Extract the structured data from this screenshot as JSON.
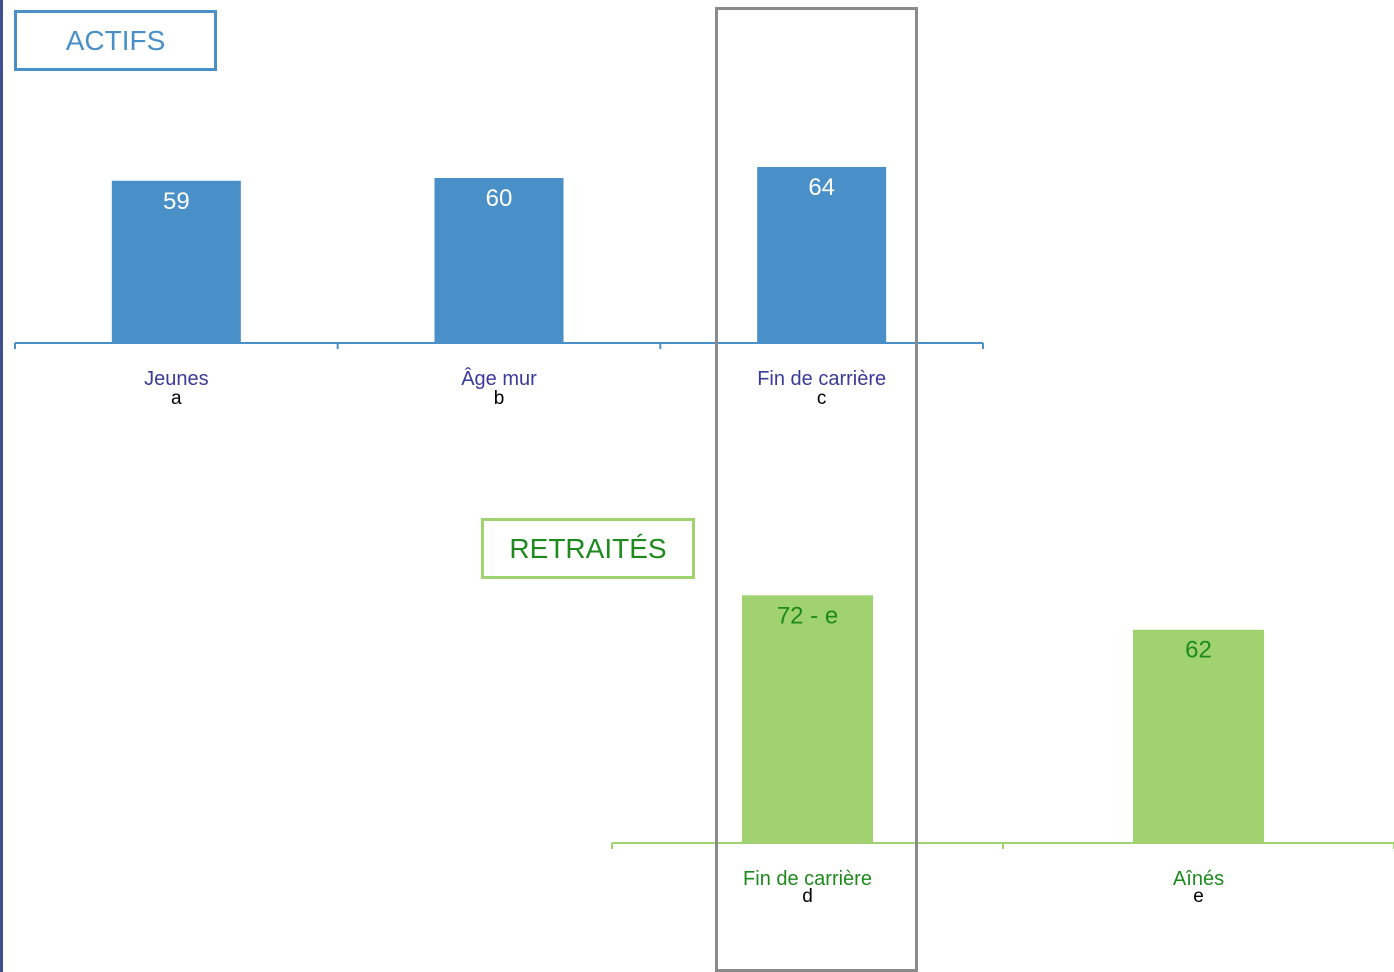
{
  "colors": {
    "actifs": "#4a90c8",
    "retraites": "#a0d26f",
    "retraites_text": "#1e8a1e",
    "actifs_category_text": "#3a3a9a",
    "highlight_frame": "#8a8a8a"
  },
  "legend": {
    "actifs": "ACTIFS",
    "retraites": "RETRAITÉS"
  },
  "chart_data": [
    {
      "type": "bar",
      "series_name": "ACTIFS",
      "categories": [
        "Jeunes",
        "Âge mur",
        "Fin de carrière"
      ],
      "category_letters": [
        "a",
        "b",
        "c"
      ],
      "values": [
        59,
        60,
        64
      ],
      "value_labels": [
        "59",
        "60",
        "64"
      ],
      "grid": false
    },
    {
      "type": "bar",
      "series_name": "RETRAITÉS",
      "categories": [
        "Fin de carrière",
        "Aînés"
      ],
      "category_letters": [
        "d",
        "e"
      ],
      "values": [
        72,
        62
      ],
      "value_labels": [
        "72 - e",
        "62"
      ],
      "grid": false
    }
  ]
}
